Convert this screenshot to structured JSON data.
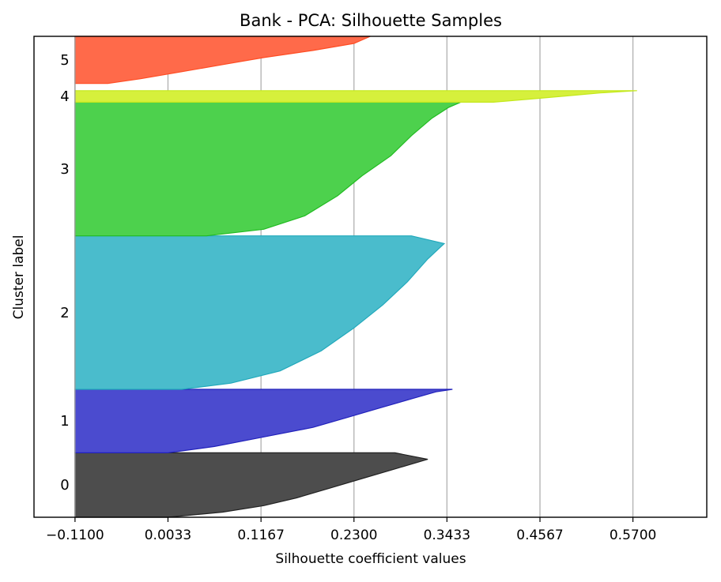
{
  "chart_data": {
    "type": "silhouette",
    "title": "Bank - PCA: Silhouette Samples",
    "xlabel": "Silhouette coefficient values",
    "ylabel": "Cluster label",
    "xlim": [
      -0.16,
      0.66
    ],
    "ylim": [
      0,
      100
    ],
    "xticks": [
      -0.11,
      0.0033,
      0.1167,
      0.23,
      0.3433,
      0.4567,
      0.57
    ],
    "xtick_labels": [
      "−0.1100",
      "0.0033",
      "0.1167",
      "0.2300",
      "0.3433",
      "0.4567",
      "0.5700"
    ],
    "grid": "vertical",
    "clusters": [
      {
        "label": "0",
        "color": "#4d4d4d",
        "edge": "#222222",
        "y_start": 0.0,
        "y_end": 13.4,
        "profile": [
          [
            0.0,
            0.0033
          ],
          [
            0.08,
            0.07
          ],
          [
            0.18,
            0.12
          ],
          [
            0.3,
            0.16
          ],
          [
            0.45,
            0.2
          ],
          [
            0.6,
            0.24
          ],
          [
            0.75,
            0.28
          ],
          [
            0.9,
            0.32
          ],
          [
            1.0,
            0.28
          ]
        ]
      },
      {
        "label": "1",
        "color": "#4b4bcf",
        "edge": "#2222bb",
        "y_start": 13.4,
        "y_end": 26.6,
        "profile": [
          [
            0.0,
            0.0033
          ],
          [
            0.1,
            0.06
          ],
          [
            0.25,
            0.12
          ],
          [
            0.4,
            0.18
          ],
          [
            0.55,
            0.22
          ],
          [
            0.7,
            0.26
          ],
          [
            0.85,
            0.3
          ],
          [
            0.96,
            0.33
          ],
          [
            1.0,
            0.35
          ]
        ]
      },
      {
        "label": "2",
        "color": "#4abccc",
        "edge": "#22a9bb",
        "y_start": 26.6,
        "y_end": 58.5,
        "profile": [
          [
            0.0,
            0.02
          ],
          [
            0.04,
            0.08
          ],
          [
            0.12,
            0.14
          ],
          [
            0.25,
            0.19
          ],
          [
            0.4,
            0.23
          ],
          [
            0.55,
            0.265
          ],
          [
            0.7,
            0.295
          ],
          [
            0.85,
            0.32
          ],
          [
            0.95,
            0.34
          ],
          [
            1.0,
            0.3
          ]
        ]
      },
      {
        "label": "3",
        "color": "#4dd14d",
        "edge": "#22bb22",
        "y_start": 58.5,
        "y_end": 86.3,
        "profile": [
          [
            0.0,
            0.05
          ],
          [
            0.05,
            0.12
          ],
          [
            0.15,
            0.17
          ],
          [
            0.3,
            0.21
          ],
          [
            0.45,
            0.24
          ],
          [
            0.6,
            0.275
          ],
          [
            0.75,
            0.3
          ],
          [
            0.88,
            0.325
          ],
          [
            0.96,
            0.345
          ],
          [
            1.0,
            0.36
          ]
        ]
      },
      {
        "label": "4",
        "color": "#d6f03c",
        "edge": "#c3e81b",
        "y_start": 86.3,
        "y_end": 88.7,
        "profile": [
          [
            0.0,
            0.4
          ],
          [
            0.3,
            0.45
          ],
          [
            0.55,
            0.49
          ],
          [
            0.8,
            0.53
          ],
          [
            1.0,
            0.575
          ]
        ]
      },
      {
        "label": "5",
        "color": "#ff6a4a",
        "edge": "#ff4d24",
        "y_start": 90.2,
        "y_end": 100.0,
        "profile": [
          [
            0.0,
            -0.07
          ],
          [
            0.1,
            -0.03
          ],
          [
            0.25,
            0.02
          ],
          [
            0.4,
            0.07
          ],
          [
            0.55,
            0.12
          ],
          [
            0.7,
            0.18
          ],
          [
            0.85,
            0.23
          ],
          [
            1.0,
            0.25
          ]
        ]
      }
    ]
  }
}
